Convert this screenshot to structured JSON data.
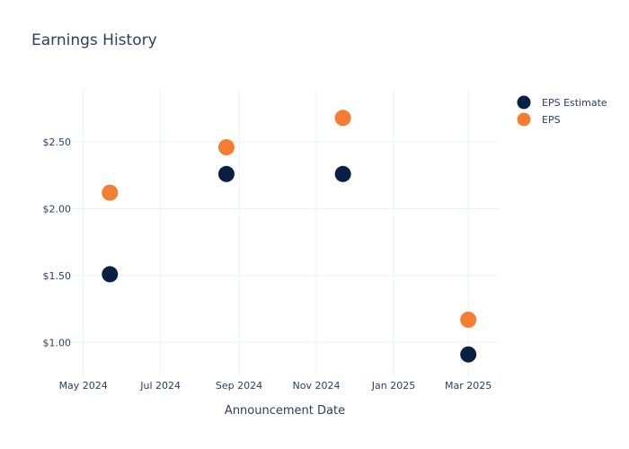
{
  "chart_data": {
    "type": "scatter",
    "title": "Earnings History",
    "xlabel": "Announcement Date",
    "ylabel": "",
    "x_ticks": [
      "May 2024",
      "Jul 2024",
      "Sep 2024",
      "Nov 2024",
      "Jan 2025",
      "Mar 2025"
    ],
    "y_ticks": [
      "$1.00",
      "$1.50",
      "$2.00",
      "$2.50"
    ],
    "x_range": [
      "2024-04-22",
      "2025-03-25"
    ],
    "ylim": [
      0.74,
      2.89
    ],
    "legend_position": "top-right",
    "grid": true,
    "x": [
      "2024-05-22",
      "2024-08-22",
      "2024-11-22",
      "2025-03-01"
    ],
    "series": [
      {
        "name": "EPS Estimate",
        "color": "#0a1f44",
        "values": [
          1.51,
          2.26,
          2.26,
          0.91
        ]
      },
      {
        "name": "EPS",
        "color": "#f47c33",
        "values": [
          2.12,
          2.46,
          2.68,
          1.17
        ]
      }
    ]
  }
}
